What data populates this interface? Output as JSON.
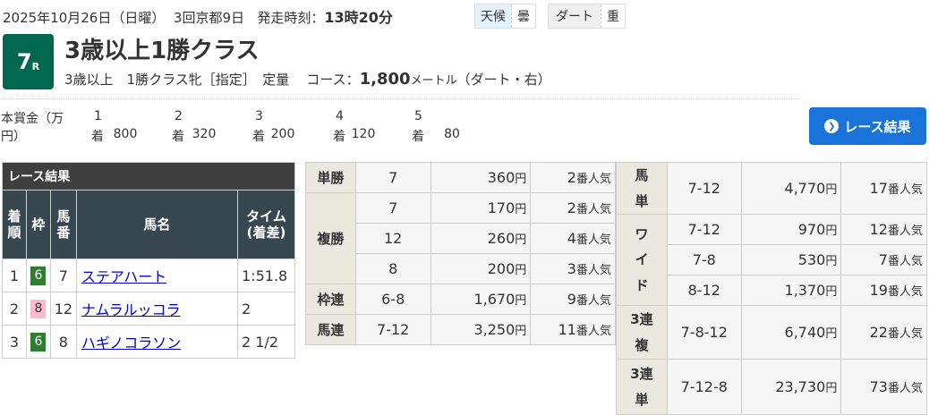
{
  "header": {
    "date": "2025年10月26日（日曜）",
    "meeting": "3回京都9日",
    "post_label": "発走時刻：",
    "post_time": "13時20分",
    "weather_label": "天候",
    "weather": "曇",
    "track_label": "ダート",
    "track_cond": "重"
  },
  "race": {
    "number": "7",
    "number_suffix": "R",
    "title": "3歳以上1勝クラス",
    "conditions": "3歳以上　1勝クラス牝［指定］　定量",
    "course_label": "コース：",
    "distance": "1,800",
    "distance_unit": "メートル",
    "course_detail": "（ダート・右）",
    "accent": "#00684f"
  },
  "prize": {
    "label1": "本賞金（万",
    "label2": "円）",
    "places": [
      "1",
      "2",
      "3",
      "4",
      "5"
    ],
    "suffix": "着",
    "amounts": [
      "800",
      "320",
      "200",
      "120",
      "80"
    ]
  },
  "result_button": {
    "label": "レース結果"
  },
  "results": {
    "caption": "レース結果",
    "headers": [
      "着順",
      "枠",
      "馬番",
      "馬名",
      "タイム(着差)"
    ],
    "rows": [
      {
        "pos": "1",
        "waku": "6",
        "waku_color": "#2e7d32",
        "num": "7",
        "name": "ステアハート",
        "time": "1:51.8"
      },
      {
        "pos": "2",
        "waku": "8",
        "waku_color": "#f8bbd0",
        "num": "12",
        "name": "ナムラルッコラ",
        "time": "2"
      },
      {
        "pos": "3",
        "waku": "6",
        "waku_color": "#2e7d32",
        "num": "8",
        "name": "ハギノコラソン",
        "time": "2 1/2"
      }
    ]
  },
  "payouts_mid": {
    "tansho": {
      "label": "単勝",
      "rows": [
        {
          "combo": "7",
          "yen": "360",
          "pop": "2"
        }
      ]
    },
    "fukusho": {
      "label": "複勝",
      "rows": [
        {
          "combo": "7",
          "yen": "170",
          "pop": "2"
        },
        {
          "combo": "12",
          "yen": "260",
          "pop": "4"
        },
        {
          "combo": "8",
          "yen": "200",
          "pop": "3"
        }
      ]
    },
    "wakuren": {
      "label": "枠連",
      "rows": [
        {
          "combo": "6-8",
          "yen": "1,670",
          "pop": "9"
        }
      ]
    },
    "umaren": {
      "label": "馬連",
      "rows": [
        {
          "combo": "7-12",
          "yen": "3,250",
          "pop": "11"
        }
      ]
    }
  },
  "payouts_right": {
    "umatan": {
      "label": "馬単",
      "rows": [
        {
          "combo": "7-12",
          "yen": "4,770",
          "pop": "17"
        }
      ]
    },
    "wide": {
      "label": "ワイド",
      "rows": [
        {
          "combo": "7-12",
          "yen": "970",
          "pop": "12"
        },
        {
          "combo": "7-8",
          "yen": "530",
          "pop": "7"
        },
        {
          "combo": "8-12",
          "yen": "1,370",
          "pop": "19"
        }
      ]
    },
    "sanrenpuku": {
      "label": "3連複",
      "rows": [
        {
          "combo": "7-8-12",
          "yen": "6,740",
          "pop": "22"
        }
      ]
    },
    "sanrentan": {
      "label": "3連単",
      "rows": [
        {
          "combo": "7-12-8",
          "yen": "23,730",
          "pop": "73"
        }
      ]
    }
  },
  "units": {
    "yen": "円",
    "pop": "番人気"
  }
}
